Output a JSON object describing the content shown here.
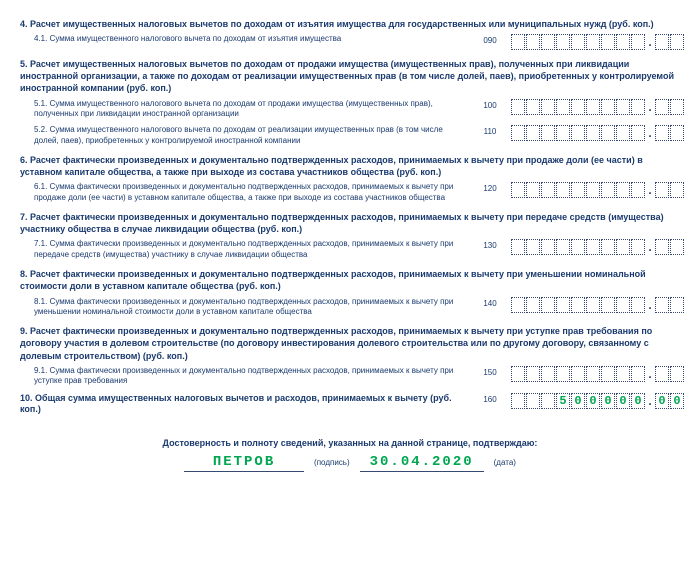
{
  "sections": [
    {
      "num": "4.",
      "title": "Расчет имущественных налоговых вычетов по доходам от изъятия имущества для государственных или муниципальных нужд (руб. коп.)",
      "bold": true
    },
    {
      "num": "4.1.",
      "label": "Сумма имущественного налогового вычета по доходам от изъятия имущества",
      "code": "090",
      "int": 9,
      "dec": 2
    },
    {
      "num": "5.",
      "title": "Расчет имущественных налоговых вычетов по доходам от продажи имущества (имущественных прав), полученных при ликвидации иностранной организации, а также по доходам от реализации имущественных прав (в том числе долей, паев), приобретенных у контролируемой иностранной компании (руб. коп.)",
      "bold": true
    },
    {
      "num": "5.1.",
      "label": "Сумма имущественного налогового вычета по доходам от продажи имущества (имущественных прав), полученных при ликвидации иностранной организации",
      "code": "100",
      "int": 9,
      "dec": 2
    },
    {
      "num": "5.2.",
      "label": "Сумма имущественного налогового вычета по доходам от реализации имущественных прав (в том числе долей, паев), приобретенных у контролируемой иностранной компании",
      "code": "110",
      "int": 9,
      "dec": 2
    },
    {
      "num": "6.",
      "title": "Расчет фактически произведенных и документально подтвержденных расходов, принимаемых к вычету при продаже доли (ее части) в уставном капитале общества, а также при выходе из состава участников общества (руб. коп.)",
      "bold": true
    },
    {
      "num": "6.1.",
      "label": "Сумма фактически произведенных и документально подтвержденных расходов, принимаемых к вычету при продаже доли (ее части) в уставном капитале общества, а также при выходе из состава участников общества",
      "code": "120",
      "int": 9,
      "dec": 2
    },
    {
      "num": "7.",
      "title": "Расчет фактически произведенных и документально подтвержденных расходов, принимаемых к вычету при передаче средств (имущества) участнику общества в случае ликвидации общества (руб. коп.)",
      "bold": true
    },
    {
      "num": "7.1.",
      "label": "Сумма фактически произведенных и документально подтвержденных расходов, принимаемых к вычету при передаче средств (имущества) участнику в случае ликвидации общества",
      "code": "130",
      "int": 9,
      "dec": 2
    },
    {
      "num": "8.",
      "title": "Расчет фактически произведенных и документально подтвержденных расходов, принимаемых к вычету при уменьшении номинальной стоимости доли в уставном капитале общества (руб. коп.)",
      "bold": true
    },
    {
      "num": "8.1.",
      "label": "Сумма фактически произведенных и документально подтвержденных расходов, принимаемых к вычету при уменьшении номинальной стоимости доли в уставном капитале общества",
      "code": "140",
      "int": 9,
      "dec": 2
    },
    {
      "num": "9.",
      "title": "Расчет фактически произведенных и документально подтвержденных расходов, принимаемых к вычету при уступке прав требования по договору участия в долевом строительстве (по договору инвестирования долевого строительства или по другому договору, связанному с долевым строительством) (руб. коп.)",
      "bold": true
    },
    {
      "num": "9.1.",
      "label": "Сумма фактически произведенных и документально подтвержденных расходов, принимаемых к вычету при уступке прав требования",
      "code": "150",
      "int": 9,
      "dec": 2
    },
    {
      "num": "10.",
      "title_row": "Общая сумма имущественных налоговых вычетов и расходов, принимаемых к вычету (руб. коп.)",
      "code": "160",
      "int": 9,
      "dec": 2,
      "bold": true,
      "intVal": "   500000",
      "decVal": "00"
    }
  ],
  "sig": {
    "heading": "Достоверность и полноту сведений, указанных на данной странице, подтверждаю:",
    "name": "ПЕТРОВ",
    "name_caption": "(подпись)",
    "date": "30.04.2020",
    "date_caption": "(дата)"
  }
}
